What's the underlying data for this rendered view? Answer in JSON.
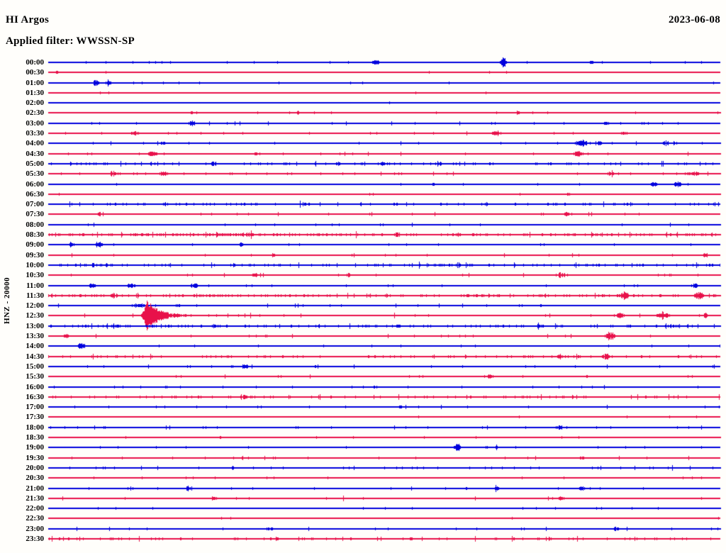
{
  "header": {
    "station": "HI Argos",
    "date": "2023-06-08",
    "filter": "Applied filter: WWSSN-SP"
  },
  "axis": {
    "channel_label": "HNZ - 20000"
  },
  "colors": {
    "trace_blue": "#0000dd",
    "trace_red": "#e8114a",
    "text": "#000000",
    "background": "#fffefb"
  },
  "chart_data": {
    "type": "line",
    "subtype": "helicorder",
    "title": "HI Argos seismogram 2023-06-08 (WWSSN-SP filter)",
    "row_duration_minutes": 30,
    "start_time": "00:00",
    "end_time": "23:30",
    "rows_count": 48,
    "color_alternation": [
      "blue",
      "red"
    ],
    "main_event": {
      "row": "12:30",
      "p": 0.145,
      "amp": 24,
      "decay": 17,
      "description": "large spindle-shaped earthquake burst near start of 12:30 trace"
    },
    "rows": [
      {
        "label": "00:00",
        "color": "blue",
        "noise": 0.8,
        "bursts": [
          {
            "p": 0.487,
            "w": 6,
            "a": 3
          },
          {
            "p": 0.677,
            "w": 3,
            "a": 10
          },
          {
            "p": 0.809,
            "w": 4,
            "a": 2
          }
        ]
      },
      {
        "label": "00:30",
        "color": "red",
        "noise": 0.6,
        "bursts": [
          {
            "p": 0.013,
            "w": 3,
            "a": 2
          }
        ]
      },
      {
        "label": "01:00",
        "color": "blue",
        "noise": 0.7,
        "bursts": [
          {
            "p": 0.071,
            "w": 5,
            "a": 4
          },
          {
            "p": 0.089,
            "w": 4,
            "a": 4
          }
        ]
      },
      {
        "label": "01:30",
        "color": "red",
        "noise": 0.6,
        "bursts": [
          {
            "p": 0.076,
            "w": 4,
            "a": 2
          }
        ]
      },
      {
        "label": "02:00",
        "color": "blue",
        "noise": 0.6,
        "bursts": []
      },
      {
        "label": "02:30",
        "color": "red",
        "noise": 0.8,
        "bursts": [
          {
            "p": 0.213,
            "w": 4,
            "a": 2
          },
          {
            "p": 0.371,
            "w": 3,
            "a": 2.5
          },
          {
            "p": 0.698,
            "w": 3,
            "a": 2
          }
        ]
      },
      {
        "label": "03:00",
        "color": "blue",
        "noise": 0.9,
        "bursts": [
          {
            "p": 0.213,
            "w": 5,
            "a": 3.5
          },
          {
            "p": 0.83,
            "w": 4,
            "a": 2
          }
        ]
      },
      {
        "label": "03:30",
        "color": "red",
        "noise": 0.9,
        "bursts": [
          {
            "p": 0.129,
            "w": 6,
            "a": 2.5
          },
          {
            "p": 0.667,
            "w": 5,
            "a": 3.5
          },
          {
            "p": 0.857,
            "w": 4,
            "a": 2.5
          }
        ]
      },
      {
        "label": "04:00",
        "color": "blue",
        "noise": 1.1,
        "bursts": [
          {
            "p": 0.171,
            "w": 4,
            "a": 2
          },
          {
            "p": 0.793,
            "w": 8,
            "a": 4
          },
          {
            "p": 0.82,
            "w": 5,
            "a": 3.5
          },
          {
            "p": 0.92,
            "w": 5,
            "a": 3
          }
        ]
      },
      {
        "label": "04:30",
        "color": "red",
        "noise": 0.9,
        "bursts": [
          {
            "p": 0.155,
            "w": 6,
            "a": 4
          },
          {
            "p": 0.308,
            "w": 4,
            "a": 2
          },
          {
            "p": 0.788,
            "w": 6,
            "a": 4
          }
        ]
      },
      {
        "label": "05:00",
        "color": "blue",
        "noise": 1.3,
        "bursts": [
          {
            "p": 0.245,
            "w": 6,
            "a": 2.5
          },
          {
            "p": 0.498,
            "w": 5,
            "a": 2.5
          },
          {
            "p": 0.582,
            "w": 4,
            "a": 2.5
          }
        ]
      },
      {
        "label": "05:30",
        "color": "red",
        "noise": 1.2,
        "bursts": [
          {
            "p": 0.097,
            "w": 6,
            "a": 3
          },
          {
            "p": 0.171,
            "w": 5,
            "a": 3
          },
          {
            "p": 0.836,
            "w": 4,
            "a": 2.5
          },
          {
            "p": 0.957,
            "w": 8,
            "a": 3
          }
        ]
      },
      {
        "label": "06:00",
        "color": "blue",
        "noise": 0.7,
        "bursts": [
          {
            "p": 0.572,
            "w": 3,
            "a": 2
          },
          {
            "p": 0.899,
            "w": 7,
            "a": 3.5
          },
          {
            "p": 0.936,
            "w": 6,
            "a": 3.5
          }
        ]
      },
      {
        "label": "06:30",
        "color": "red",
        "noise": 0.7,
        "bursts": [
          {
            "p": 0.772,
            "w": 4,
            "a": 2.5
          }
        ]
      },
      {
        "label": "07:00",
        "color": "blue",
        "noise": 1.3,
        "bursts": [
          {
            "p": 0.382,
            "w": 5,
            "a": 2
          },
          {
            "p": 0.514,
            "w": 4,
            "a": 2
          }
        ]
      },
      {
        "label": "07:30",
        "color": "red",
        "noise": 0.9,
        "bursts": [
          {
            "p": 0.076,
            "w": 4,
            "a": 2.5
          },
          {
            "p": 0.772,
            "w": 5,
            "a": 3
          }
        ]
      },
      {
        "label": "08:00",
        "color": "blue",
        "noise": 0.9,
        "bursts": [
          {
            "p": 0.498,
            "w": 4,
            "a": 2
          }
        ]
      },
      {
        "label": "08:30",
        "color": "red",
        "noise": 1.7,
        "bursts": [
          {
            "p": 0.297,
            "w": 6,
            "a": 2.5
          },
          {
            "p": 0.519,
            "w": 5,
            "a": 2
          }
        ]
      },
      {
        "label": "09:00",
        "color": "blue",
        "noise": 0.9,
        "bursts": [
          {
            "p": 0.034,
            "w": 4,
            "a": 3
          },
          {
            "p": 0.076,
            "w": 5,
            "a": 3.5
          },
          {
            "p": 0.287,
            "w": 4,
            "a": 3
          }
        ]
      },
      {
        "label": "09:30",
        "color": "red",
        "noise": 0.9,
        "bursts": [
          {
            "p": 0.334,
            "w": 4,
            "a": 2.5
          },
          {
            "p": 0.978,
            "w": 4,
            "a": 3
          }
        ]
      },
      {
        "label": "10:00",
        "color": "blue",
        "noise": 1.4,
        "bursts": [
          {
            "p": 0.065,
            "w": 6,
            "a": 2
          },
          {
            "p": 0.181,
            "w": 5,
            "a": 2
          }
        ]
      },
      {
        "label": "10:30",
        "color": "red",
        "noise": 1.0,
        "bursts": [
          {
            "p": 0.308,
            "w": 4,
            "a": 2.5
          },
          {
            "p": 0.445,
            "w": 4,
            "a": 2.5
          },
          {
            "p": 0.762,
            "w": 5,
            "a": 3
          }
        ]
      },
      {
        "label": "11:00",
        "color": "blue",
        "noise": 0.9,
        "bursts": [
          {
            "p": 0.065,
            "w": 5,
            "a": 3
          },
          {
            "p": 0.123,
            "w": 5,
            "a": 3
          },
          {
            "p": 0.218,
            "w": 7,
            "a": 3
          },
          {
            "p": 0.962,
            "w": 5,
            "a": 3
          }
        ]
      },
      {
        "label": "11:30",
        "color": "red",
        "noise": 1.6,
        "bursts": [
          {
            "p": 0.097,
            "w": 5,
            "a": 3
          },
          {
            "p": 0.857,
            "w": 7,
            "a": 5
          },
          {
            "p": 0.967,
            "w": 7,
            "a": 5
          }
        ]
      },
      {
        "label": "12:00",
        "color": "blue",
        "noise": 1.0,
        "bursts": [
          {
            "p": 0.134,
            "w": 8,
            "a": 2.5
          },
          {
            "p": 0.192,
            "w": 5,
            "a": 2
          }
        ]
      },
      {
        "label": "12:30",
        "color": "red",
        "noise": 1.1,
        "event": {
          "p": 0.145,
          "amp": 24,
          "decay": 17
        },
        "bursts": [
          {
            "p": 0.851,
            "w": 6,
            "a": 4
          },
          {
            "p": 0.915,
            "w": 8,
            "a": 4
          },
          {
            "p": 0.978,
            "w": 4,
            "a": 3
          }
        ]
      },
      {
        "label": "13:00",
        "color": "blue",
        "noise": 1.4,
        "bursts": [
          {
            "p": 0.055,
            "w": 6,
            "a": 2.5
          },
          {
            "p": 0.102,
            "w": 5,
            "a": 2.5
          },
          {
            "p": 0.245,
            "w": 4,
            "a": 2
          },
          {
            "p": 0.519,
            "w": 4,
            "a": 2
          },
          {
            "p": 0.73,
            "w": 4,
            "a": 2
          }
        ]
      },
      {
        "label": "13:30",
        "color": "red",
        "noise": 1.0,
        "bursts": [
          {
            "p": 0.028,
            "w": 4,
            "a": 2.5
          },
          {
            "p": 0.836,
            "w": 7,
            "a": 5
          }
        ]
      },
      {
        "label": "14:00",
        "color": "blue",
        "noise": 0.7,
        "bursts": [
          {
            "p": 0.05,
            "w": 6,
            "a": 4
          }
        ]
      },
      {
        "label": "14:30",
        "color": "red",
        "noise": 1.3,
        "bursts": [
          {
            "p": 0.762,
            "w": 5,
            "a": 3
          },
          {
            "p": 0.83,
            "w": 6,
            "a": 3.5
          }
        ]
      },
      {
        "label": "15:00",
        "color": "blue",
        "noise": 1.0,
        "bursts": [
          {
            "p": 0.292,
            "w": 5,
            "a": 2.5
          },
          {
            "p": 0.398,
            "w": 4,
            "a": 2
          }
        ]
      },
      {
        "label": "15:30",
        "color": "red",
        "noise": 1.0,
        "bursts": [
          {
            "p": 0.656,
            "w": 5,
            "a": 2.5
          }
        ]
      },
      {
        "label": "16:00",
        "color": "blue",
        "noise": 0.8,
        "bursts": [
          {
            "p": 0.487,
            "w": 4,
            "a": 2
          }
        ]
      },
      {
        "label": "16:30",
        "color": "red",
        "noise": 1.3,
        "bursts": [
          {
            "p": 0.292,
            "w": 4,
            "a": 2.5
          }
        ]
      },
      {
        "label": "17:00",
        "color": "blue",
        "noise": 1.0,
        "bursts": [
          {
            "p": 0.524,
            "w": 4,
            "a": 2
          }
        ]
      },
      {
        "label": "17:30",
        "color": "red",
        "noise": 0.7,
        "bursts": []
      },
      {
        "label": "18:00",
        "color": "blue",
        "noise": 1.1,
        "bursts": [
          {
            "p": 0.762,
            "w": 6,
            "a": 2.5
          }
        ]
      },
      {
        "label": "18:30",
        "color": "red",
        "noise": 0.7,
        "bursts": [
          {
            "p": 0.255,
            "w": 3,
            "a": 2
          }
        ]
      },
      {
        "label": "19:00",
        "color": "blue",
        "noise": 0.8,
        "bursts": [
          {
            "p": 0.609,
            "w": 5,
            "a": 5
          },
          {
            "p": 0.667,
            "w": 4,
            "a": 2
          }
        ]
      },
      {
        "label": "19:30",
        "color": "red",
        "noise": 1.0,
        "bursts": [
          {
            "p": 0.793,
            "w": 5,
            "a": 2.5
          }
        ]
      },
      {
        "label": "20:00",
        "color": "blue",
        "noise": 1.2,
        "bursts": [
          {
            "p": 0.276,
            "w": 4,
            "a": 2
          }
        ]
      },
      {
        "label": "20:30",
        "color": "red",
        "noise": 0.7,
        "bursts": []
      },
      {
        "label": "21:00",
        "color": "blue",
        "noise": 0.9,
        "bursts": [
          {
            "p": 0.208,
            "w": 5,
            "a": 3
          },
          {
            "p": 0.667,
            "w": 4,
            "a": 2.5
          },
          {
            "p": 0.793,
            "w": 4,
            "a": 2.5
          }
        ]
      },
      {
        "label": "21:30",
        "color": "red",
        "noise": 1.1,
        "bursts": [
          {
            "p": 0.245,
            "w": 5,
            "a": 2.5
          },
          {
            "p": 0.762,
            "w": 5,
            "a": 2.5
          }
        ]
      },
      {
        "label": "22:00",
        "color": "blue",
        "noise": 0.8,
        "bursts": []
      },
      {
        "label": "22:30",
        "color": "red",
        "noise": 0.6,
        "bursts": [
          {
            "p": 0.271,
            "w": 2,
            "a": 2
          }
        ]
      },
      {
        "label": "23:00",
        "color": "blue",
        "noise": 1.0,
        "bursts": [
          {
            "p": 0.329,
            "w": 6,
            "a": 2
          },
          {
            "p": 0.846,
            "w": 6,
            "a": 2.5
          }
        ]
      },
      {
        "label": "23:30",
        "color": "red",
        "noise": 1.3,
        "bursts": [
          {
            "p": 0.34,
            "w": 5,
            "a": 2
          }
        ]
      }
    ]
  }
}
